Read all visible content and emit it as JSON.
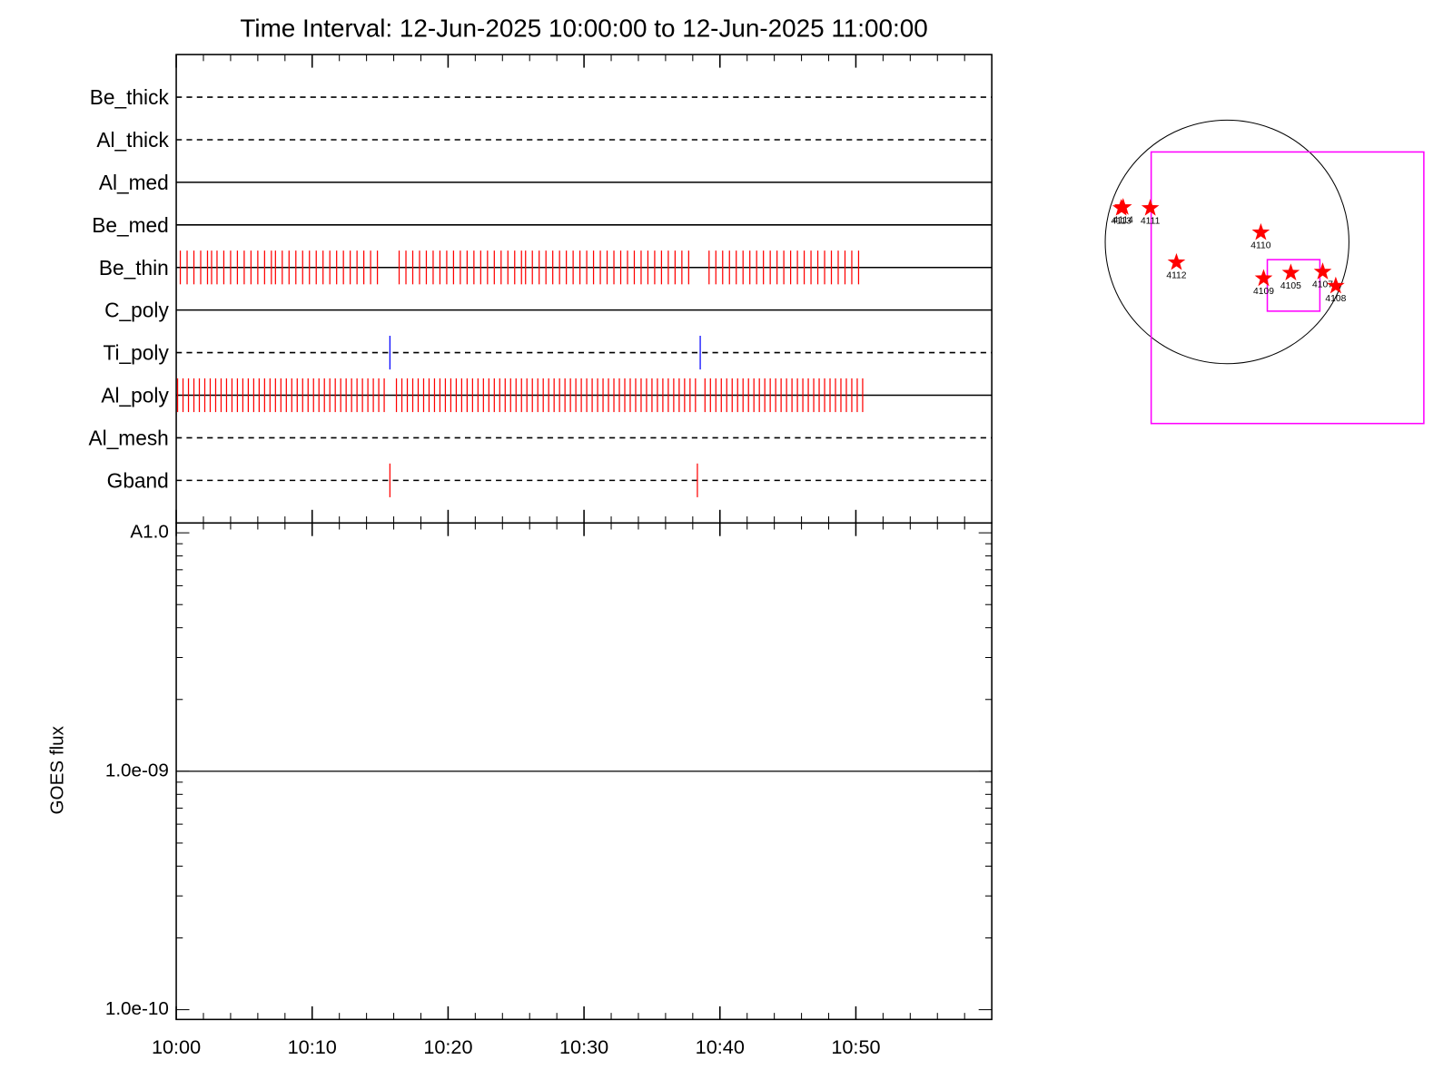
{
  "chart_data": [
    {
      "type": "timeline",
      "title": "Time Interval: 12-Jun-2025 10:00:00 to 12-Jun-2025 11:00:00",
      "xlim": [
        0,
        60
      ],
      "rows": [
        {
          "name": "Be_thick",
          "style": "dashed"
        },
        {
          "name": "Al_thick",
          "style": "dashed"
        },
        {
          "name": "Al_med",
          "style": "solid"
        },
        {
          "name": "Be_med",
          "style": "solid"
        },
        {
          "name": "Be_thin",
          "style": "solid",
          "color": "#ff0000",
          "events": [
            0.3,
            0.8,
            1.3,
            1.8,
            2.3,
            2.6,
            3.0,
            3.5,
            4.0,
            4.5,
            5.0,
            5.5,
            6.0,
            6.5,
            7.0,
            7.3,
            7.8,
            8.3,
            8.8,
            9.3,
            9.8,
            10.3,
            10.8,
            11.3,
            11.8,
            12.3,
            12.8,
            13.3,
            13.8,
            14.3,
            14.8,
            16.4,
            16.9,
            17.4,
            17.9,
            18.4,
            18.9,
            19.4,
            19.9,
            20.4,
            20.9,
            21.4,
            21.9,
            22.4,
            22.9,
            23.4,
            23.9,
            24.4,
            24.9,
            25.4,
            25.7,
            26.2,
            26.7,
            27.2,
            27.7,
            28.2,
            28.7,
            29.2,
            29.7,
            30.2,
            30.7,
            31.2,
            31.7,
            32.2,
            32.7,
            33.2,
            33.7,
            34.2,
            34.7,
            35.2,
            35.7,
            36.2,
            36.7,
            37.2,
            37.7,
            39.2,
            39.7,
            40.2,
            40.7,
            41.2,
            41.7,
            42.2,
            42.7,
            43.2,
            43.7,
            44.2,
            44.7,
            45.2,
            45.7,
            46.2,
            46.7,
            47.2,
            47.7,
            48.2,
            48.7,
            49.2,
            49.7,
            50.2
          ]
        },
        {
          "name": "C_poly",
          "style": "solid"
        },
        {
          "name": "Ti_poly",
          "style": "dashed",
          "color": "#0000ff",
          "events": [
            15.72,
            38.55
          ]
        },
        {
          "name": "Al_poly",
          "style": "solid",
          "color": "#ff0000",
          "events": [
            0.1,
            0.5,
            0.9,
            1.3,
            1.7,
            2.1,
            2.5,
            2.9,
            3.3,
            3.7,
            4.1,
            4.5,
            4.9,
            5.3,
            5.7,
            6.1,
            6.5,
            6.9,
            7.3,
            7.7,
            8.1,
            8.5,
            8.9,
            9.3,
            9.7,
            10.1,
            10.5,
            10.9,
            11.3,
            11.7,
            12.1,
            12.5,
            12.9,
            13.3,
            13.7,
            14.1,
            14.5,
            14.9,
            15.3,
            16.2,
            16.6,
            17.0,
            17.4,
            17.8,
            18.2,
            18.6,
            19.0,
            19.4,
            19.8,
            20.2,
            20.6,
            21.0,
            21.4,
            21.8,
            22.2,
            22.6,
            23.0,
            23.4,
            23.8,
            24.2,
            24.6,
            25.0,
            25.4,
            25.8,
            26.2,
            26.6,
            27.0,
            27.4,
            27.8,
            28.2,
            28.6,
            29.0,
            29.4,
            29.8,
            30.2,
            30.6,
            31.0,
            31.4,
            31.8,
            32.2,
            32.6,
            33.0,
            33.4,
            33.8,
            34.2,
            34.6,
            35.0,
            35.4,
            35.8,
            36.2,
            36.6,
            37.0,
            37.4,
            37.8,
            38.2,
            38.9,
            39.3,
            39.7,
            40.1,
            40.5,
            40.9,
            41.3,
            41.7,
            42.1,
            42.5,
            42.9,
            43.3,
            43.7,
            44.1,
            44.5,
            44.9,
            45.3,
            45.7,
            46.1,
            46.5,
            46.9,
            47.3,
            47.7,
            48.1,
            48.5,
            48.9,
            49.3,
            49.7,
            50.1,
            50.5
          ]
        },
        {
          "name": "Al_mesh",
          "style": "dashed"
        },
        {
          "name": "Gband",
          "style": "dashed",
          "color": "#ff0000",
          "events": [
            15.72,
            38.34
          ]
        }
      ]
    },
    {
      "type": "line",
      "ylabel": "GOES flux",
      "log_y": true,
      "xlim": [
        0,
        60
      ],
      "xticks": [
        {
          "value": 0,
          "label": "10:00"
        },
        {
          "value": 10,
          "label": "10:10"
        },
        {
          "value": 20,
          "label": "10:20"
        },
        {
          "value": 30,
          "label": "10:30"
        },
        {
          "value": 40,
          "label": "10:40"
        },
        {
          "value": 50,
          "label": "10:50"
        }
      ],
      "xminorticks": [
        2,
        4,
        6,
        8,
        12,
        14,
        16,
        18,
        22,
        24,
        26,
        28,
        32,
        34,
        36,
        38,
        42,
        44,
        46,
        48,
        52,
        54,
        56,
        58
      ],
      "ylim": [
        9.1e-11,
        1.1e-08
      ],
      "yticks": [
        {
          "value": 1e-10,
          "label": "1.0e-10"
        },
        {
          "value": 1e-09,
          "label": "1.0e-09"
        },
        {
          "value": 1e-08,
          "label": "A1.0"
        }
      ],
      "yminorticks": [
        2e-10,
        3e-10,
        4e-10,
        5e-10,
        6e-10,
        7e-10,
        8e-10,
        9e-10,
        2e-09,
        3e-09,
        4e-09,
        5e-09,
        6e-09,
        7e-09,
        8e-09,
        9e-09
      ],
      "series": [
        {
          "color": "#000000",
          "x": [
            0,
            60
          ],
          "values": [
            1e-09,
            1e-09
          ]
        }
      ]
    },
    {
      "type": "scatter",
      "xlim": [
        -1200,
        1700
      ],
      "ylim": [
        -1600,
        1200
      ],
      "disk_radius": 960,
      "boxes": [
        {
          "x": [
            -598,
            1550
          ],
          "y": [
            -1432,
            709
          ],
          "color": "#ff00ff"
        },
        {
          "x": [
            317,
            731
          ],
          "y": [
            -546,
            -140
          ],
          "color": "#ff00ff"
        }
      ],
      "color": "#ff0000",
      "points": {
        "labels": [
          "4114",
          "4113",
          "4111",
          "4110",
          "4112",
          "4109",
          "4105",
          "4107",
          "4108"
        ],
        "x": [
          -819,
          -834,
          -605,
          266,
          -399,
          288,
          502,
          753,
          856
        ],
        "y": [
          273,
          266,
          266,
          74,
          -162,
          -288,
          -244,
          -236,
          -347
        ]
      }
    }
  ]
}
